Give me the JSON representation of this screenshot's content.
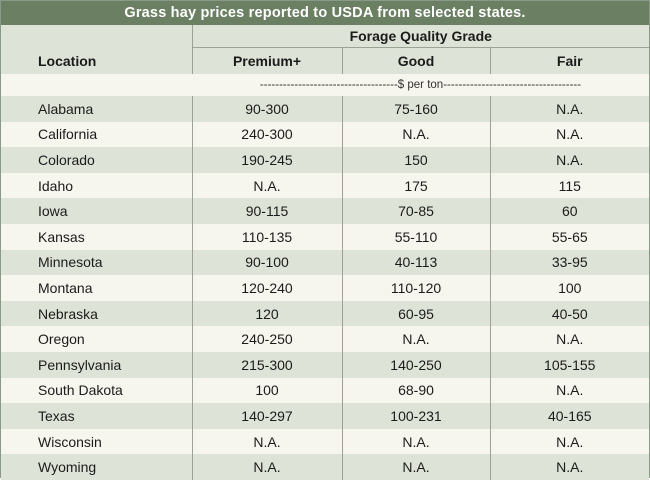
{
  "title": "Grass hay prices reported to USDA from selected states.",
  "header": {
    "group_label": "Forage Quality Grade",
    "location_label": "Location",
    "columns": [
      "Premium+",
      "Good",
      "Fair"
    ],
    "units": "$ per ton"
  },
  "rows": [
    {
      "location": "Alabama",
      "premium": "90-300",
      "good": "75-160",
      "fair": "N.A."
    },
    {
      "location": "California",
      "premium": "240-300",
      "good": "N.A.",
      "fair": "N.A."
    },
    {
      "location": "Colorado",
      "premium": "190-245",
      "good": "150",
      "fair": "N.A."
    },
    {
      "location": "Idaho",
      "premium": "N.A.",
      "good": "175",
      "fair": "115"
    },
    {
      "location": "Iowa",
      "premium": "90-115",
      "good": "70-85",
      "fair": "60"
    },
    {
      "location": "Kansas",
      "premium": "110-135",
      "good": "55-110",
      "fair": "55-65"
    },
    {
      "location": "Minnesota",
      "premium": "90-100",
      "good": "40-113",
      "fair": "33-95"
    },
    {
      "location": "Montana",
      "premium": "120-240",
      "good": "110-120",
      "fair": "100"
    },
    {
      "location": "Nebraska",
      "premium": "120",
      "good": "60-95",
      "fair": "40-50"
    },
    {
      "location": "Oregon",
      "premium": "240-250",
      "good": "N.A.",
      "fair": "N.A."
    },
    {
      "location": "Pennsylvania",
      "premium": "215-300",
      "good": "140-250",
      "fair": "105-155"
    },
    {
      "location": "South Dakota",
      "premium": "100",
      "good": "68-90",
      "fair": "N.A."
    },
    {
      "location": "Texas",
      "premium": "140-297",
      "good": "100-231",
      "fair": "40-165"
    },
    {
      "location": "Wisconsin",
      "premium": "N.A.",
      "good": "N.A.",
      "fair": "N.A."
    },
    {
      "location": "Wyoming",
      "premium": "N.A.",
      "good": "N.A.",
      "fair": "N.A."
    }
  ],
  "colors": {
    "title_bar": "#6b7f62",
    "shaded_row": "#dde3d6",
    "plain_row": "#f7f6ee",
    "rule": "#9aa396"
  }
}
